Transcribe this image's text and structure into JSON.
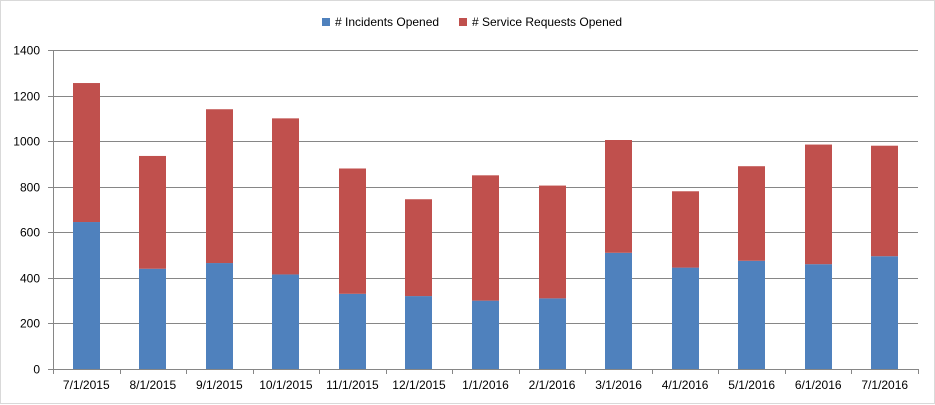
{
  "chart_data": {
    "type": "bar",
    "stacked": true,
    "title": "",
    "xlabel": "",
    "ylabel": "",
    "categories": [
      "7/1/2015",
      "8/1/2015",
      "9/1/2015",
      "10/1/2015",
      "11/1/2015",
      "12/1/2015",
      "1/1/2016",
      "2/1/2016",
      "3/1/2016",
      "4/1/2016",
      "5/1/2016",
      "6/1/2016",
      "7/1/2016"
    ],
    "series": [
      {
        "name": "# Incidents Opened",
        "color": "#4f81bd",
        "values": [
          645,
          440,
          465,
          415,
          330,
          320,
          300,
          310,
          510,
          445,
          475,
          460,
          495
        ]
      },
      {
        "name": "# Service Requests Opened",
        "color": "#c0504d",
        "values": [
          610,
          495,
          675,
          685,
          550,
          425,
          550,
          495,
          495,
          335,
          415,
          525,
          485
        ]
      }
    ],
    "ylim": [
      0,
      1400
    ],
    "yticks": [
      0,
      200,
      400,
      600,
      800,
      1000,
      1200,
      1400
    ],
    "grid": true,
    "legend_position": "top"
  }
}
